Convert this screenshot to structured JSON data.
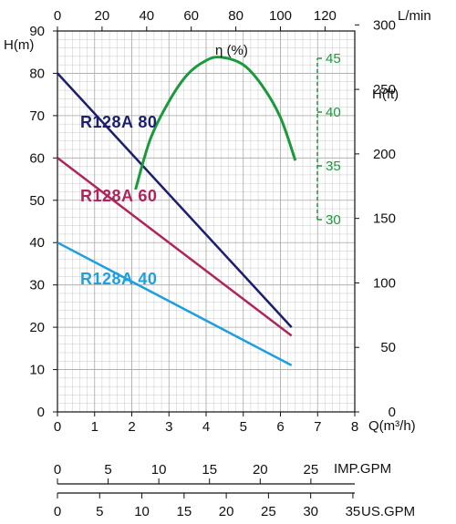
{
  "chart_data": {
    "type": "line",
    "colors": {
      "grid": "#c8c8c8",
      "axis": "#111111",
      "r80": "#1c1f6e",
      "r60": "#b0245c",
      "r40": "#1d9fe0",
      "eta": "#1a9a3c"
    },
    "x_axis": {
      "label": "Q(m³/h)",
      "ticks": [
        0,
        1,
        2,
        3,
        4,
        5,
        6,
        7,
        8
      ],
      "range": [
        0,
        8
      ]
    },
    "top_axis": {
      "label": "L/min",
      "ticks": [
        0,
        20,
        40,
        60,
        80,
        100,
        120
      ]
    },
    "y_left": {
      "label": "H(m)",
      "ticks": [
        0,
        10,
        20,
        30,
        40,
        50,
        60,
        70,
        80,
        90
      ],
      "range": [
        0,
        90
      ]
    },
    "y_right": {
      "label": "H(ft)",
      "ticks": [
        0,
        50,
        100,
        150,
        200,
        250,
        300
      ]
    },
    "eta_axis": {
      "label": "η (%)",
      "ticks": [
        30,
        35,
        40,
        45
      ]
    },
    "imp_axis": {
      "label": "IMP.GPM",
      "ticks": [
        0,
        5,
        10,
        15,
        20,
        25
      ]
    },
    "us_axis": {
      "label": "US.GPM",
      "ticks": [
        0,
        5,
        10,
        15,
        20,
        25,
        30,
        35
      ]
    },
    "series": [
      {
        "name": "R128A  80",
        "color_key": "r80",
        "points": [
          [
            0,
            80
          ],
          [
            6.3,
            20
          ]
        ]
      },
      {
        "name": "R128A  60",
        "color_key": "r60",
        "points": [
          [
            0,
            60
          ],
          [
            6.3,
            18
          ]
        ]
      },
      {
        "name": "R128A  40",
        "color_key": "r40",
        "points": [
          [
            0,
            40
          ],
          [
            6.3,
            11
          ]
        ]
      }
    ],
    "efficiency": {
      "name": "η (%)",
      "points": [
        [
          2.1,
          32.8
        ],
        [
          2.5,
          37.5
        ],
        [
          3.0,
          41.0
        ],
        [
          3.5,
          43.5
        ],
        [
          4.0,
          44.8
        ],
        [
          4.4,
          45.1
        ],
        [
          5.0,
          44.4
        ],
        [
          5.5,
          42.5
        ],
        [
          6.0,
          39.5
        ],
        [
          6.4,
          35.5
        ]
      ]
    }
  }
}
